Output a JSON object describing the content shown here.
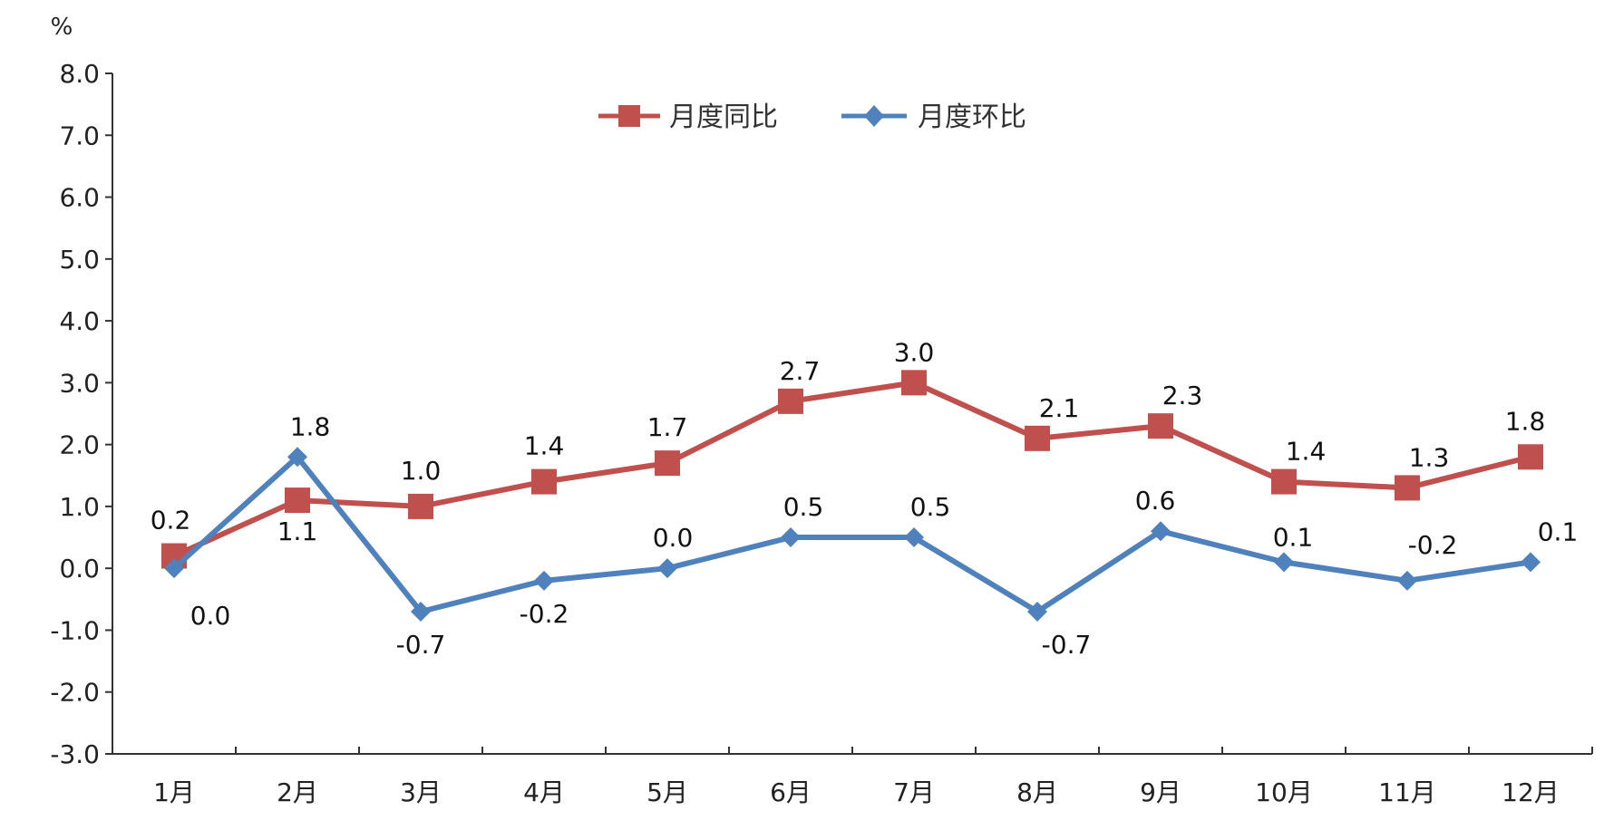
{
  "chart_data": {
    "type": "line",
    "unit": "%",
    "categories": [
      "1月",
      "2月",
      "3月",
      "4月",
      "5月",
      "6月",
      "7月",
      "8月",
      "9月",
      "10月",
      "11月",
      "12月"
    ],
    "ylim": [
      -3.0,
      8.0
    ],
    "yticks": [
      "8.0",
      "7.0",
      "6.0",
      "5.0",
      "4.0",
      "3.0",
      "2.0",
      "1.0",
      "0.0",
      "-1.0",
      "-2.0",
      "-3.0"
    ],
    "grid": false,
    "legend_position": "top-center",
    "series": [
      {
        "name": "月度同比",
        "color": "#c0504d",
        "marker": "square",
        "values": [
          0.2,
          1.1,
          1.0,
          1.4,
          1.7,
          2.7,
          3.0,
          2.1,
          2.3,
          1.4,
          1.3,
          1.8
        ],
        "labels": [
          "0.2",
          "1.1",
          "1.0",
          "1.4",
          "1.7",
          "2.7",
          "3.0",
          "2.1",
          "2.3",
          "1.4",
          "1.3",
          "1.8"
        ]
      },
      {
        "name": "月度环比",
        "color": "#4f81bd",
        "marker": "diamond",
        "values": [
          0.0,
          1.8,
          -0.7,
          -0.2,
          0.0,
          0.5,
          0.5,
          -0.7,
          0.6,
          0.1,
          -0.2,
          0.1
        ],
        "labels": [
          "0.0",
          "1.8",
          "-0.7",
          "-0.2",
          "0.0",
          "0.5",
          "0.5",
          "-0.7",
          "0.6",
          "0.1",
          "-0.2",
          "0.1"
        ]
      }
    ]
  }
}
